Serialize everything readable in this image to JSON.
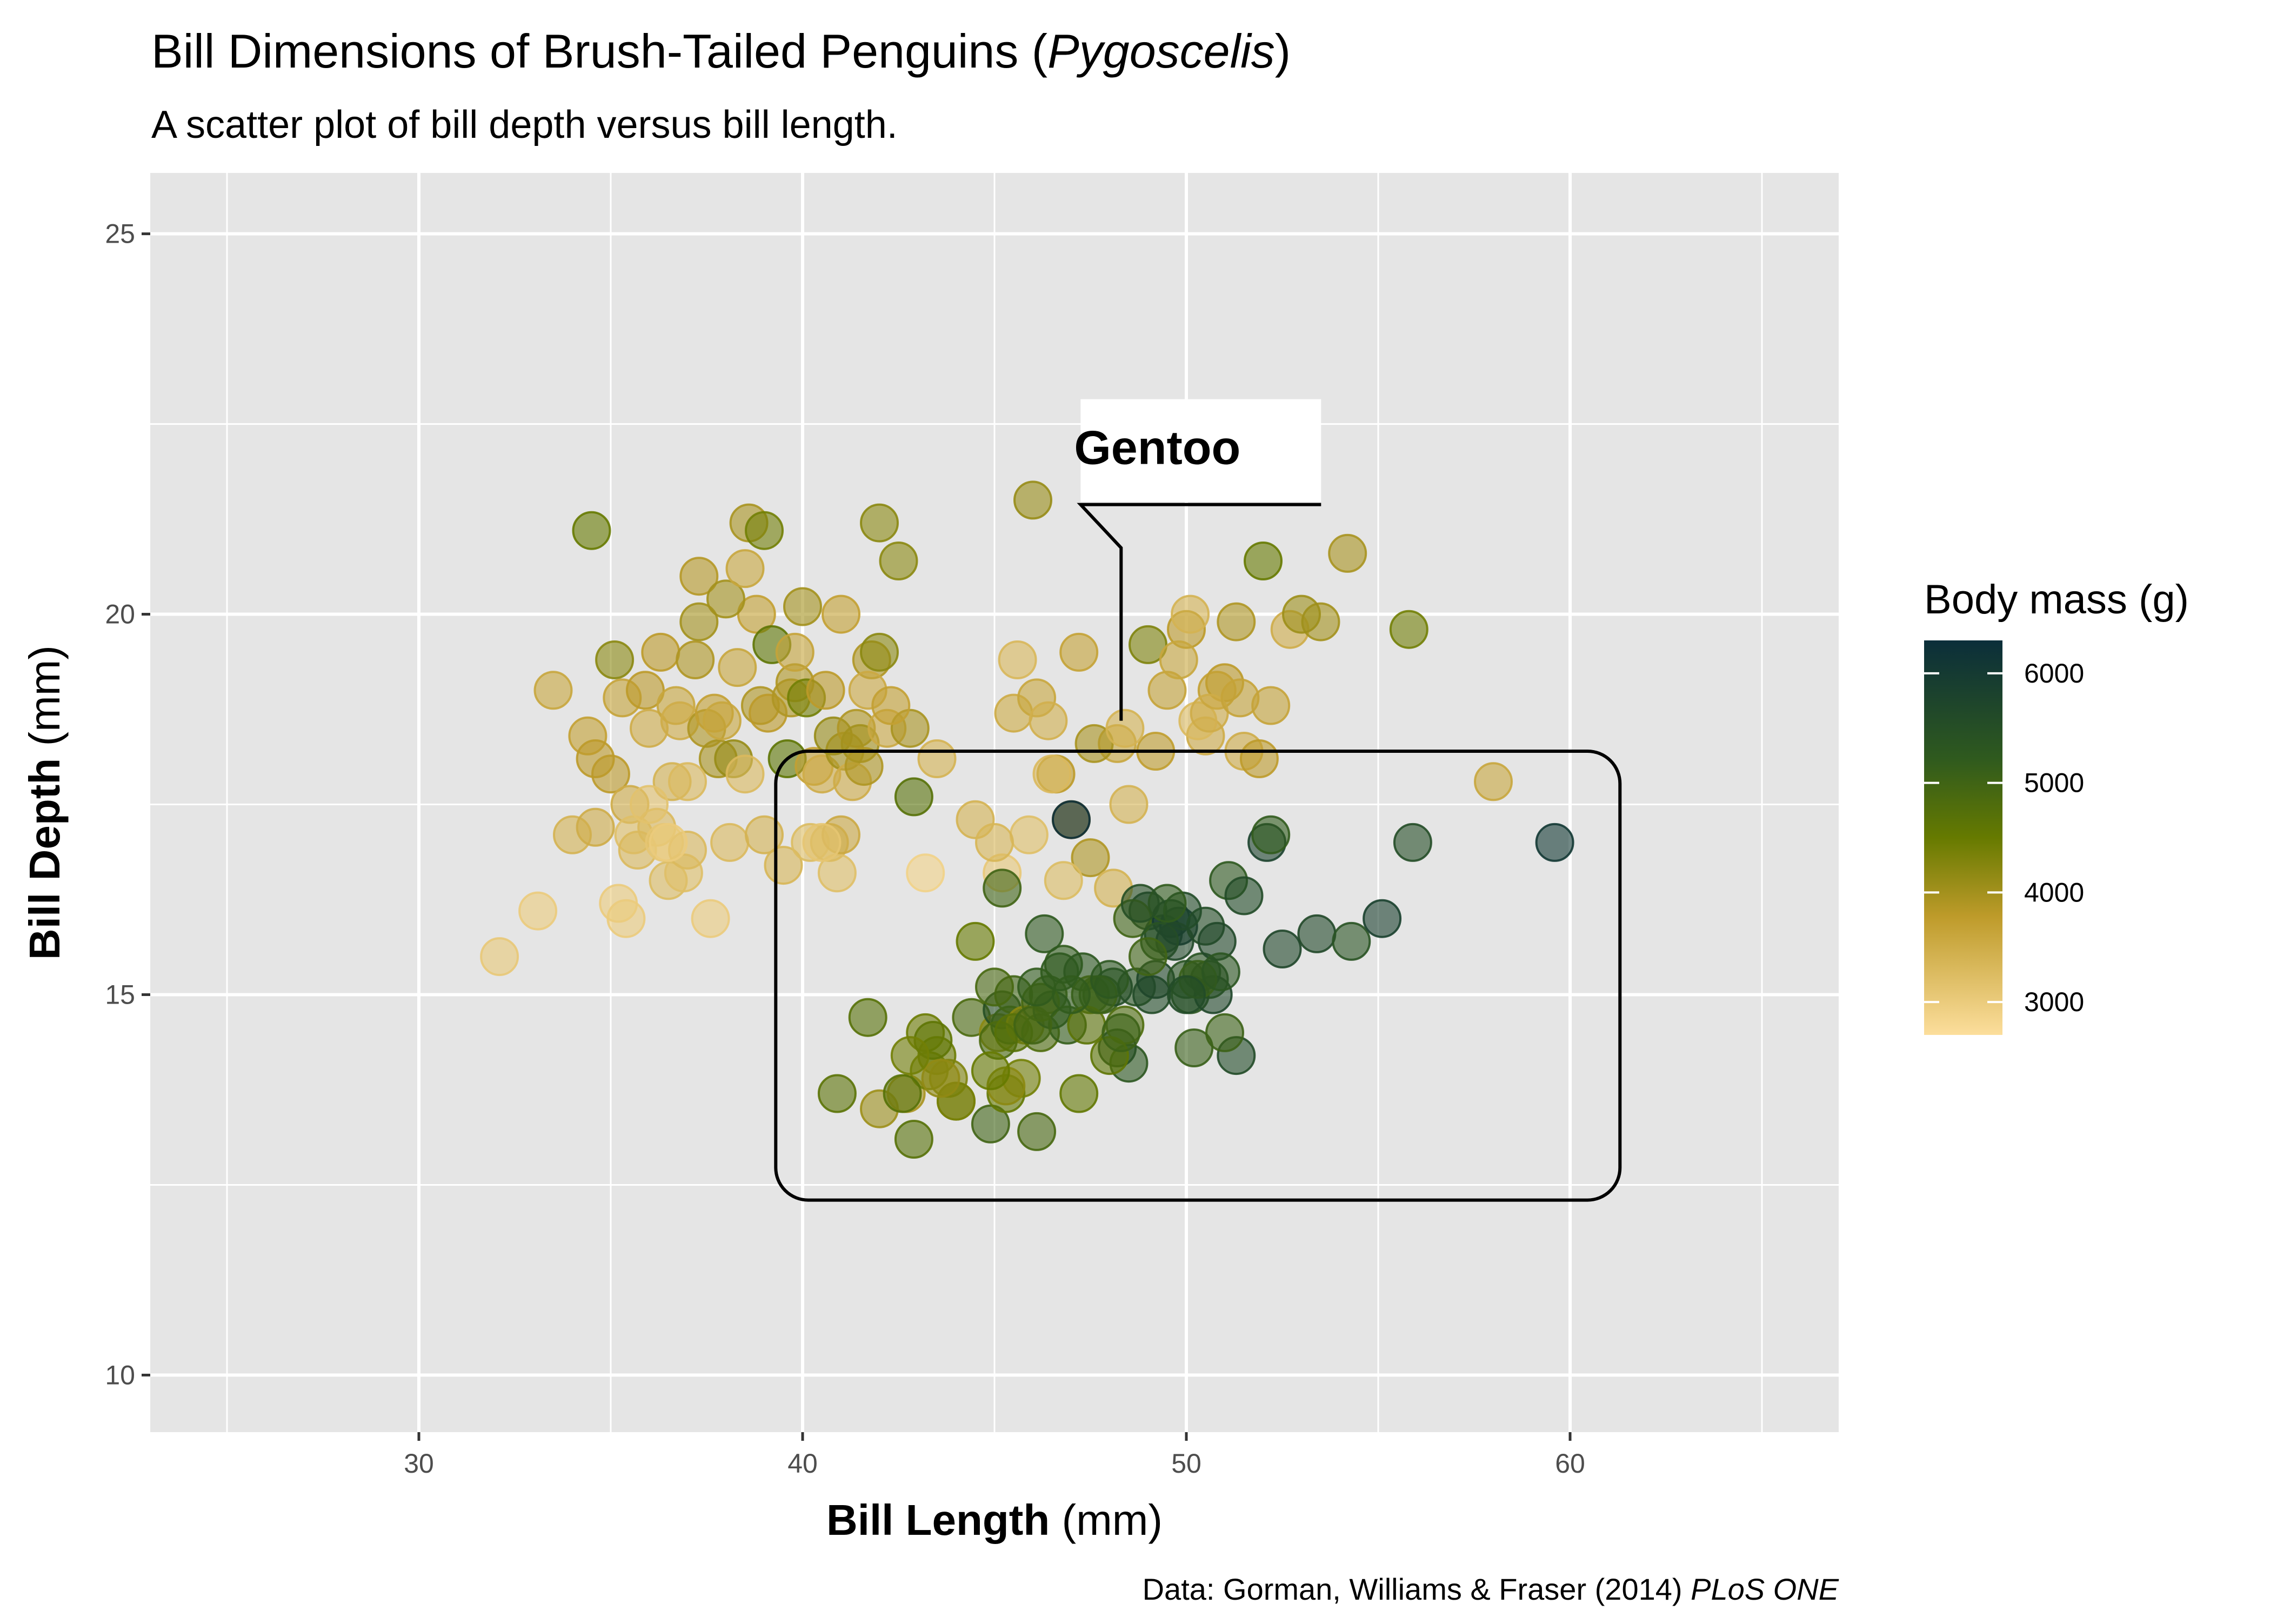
{
  "chart_data": {
    "type": "scatter",
    "title": {
      "prefix": "Bill Dimensions of Brush-Tailed Penguins (",
      "italic": "Pygoscelis",
      "suffix": ")"
    },
    "subtitle": "A scatter plot of bill depth versus bill length.",
    "xlabel": {
      "bold": "Bill Length",
      "normal": " (mm)"
    },
    "ylabel": {
      "bold": "Bill Depth",
      "normal": " (mm)"
    },
    "caption": {
      "normal": "Data: Gorman, Williams & Fraser (2014) ",
      "italic": "PLoS ONE"
    },
    "xlim": [
      23,
      67
    ],
    "ylim": [
      9.25,
      25.8
    ],
    "x_ticks": [
      30,
      40,
      50,
      60
    ],
    "y_ticks": [
      10,
      15,
      20,
      25
    ],
    "grid": true,
    "legend": {
      "title": "Body mass (g)",
      "placement": "right",
      "ticks": [
        3000,
        4000,
        5000,
        6000
      ],
      "range": [
        2700,
        6300
      ],
      "colors": {
        "low": "#FCDE9C",
        "mid1": "#BE9B2A",
        "mid2": "#667A00",
        "mid3": "#2F5A1E",
        "high": "#0B2E3A"
      }
    },
    "annotation": {
      "label": "Gentoo",
      "callout_x": 48.3,
      "callout_y": 18.6,
      "box_x": [
        39.3,
        61.3
      ],
      "box_y": [
        12.3,
        18.2
      ]
    },
    "series": [
      {
        "x": [
          32.1,
          33.1,
          33.5,
          34.0,
          34.4,
          34.5,
          34.6,
          35.0,
          35.1,
          35.2,
          35.3,
          35.5,
          35.6,
          35.7,
          35.9,
          36.0,
          36.2,
          36.3,
          36.4,
          36.5,
          36.6,
          36.7,
          36.8,
          36.9,
          37.0,
          37.2,
          37.3,
          37.5,
          37.6,
          37.7,
          37.8,
          37.9,
          38.1,
          38.2,
          38.3,
          38.5,
          38.6,
          38.8,
          38.9,
          39.0,
          39.1,
          39.2,
          39.5,
          39.6,
          39.7,
          39.8,
          40.1,
          40.2,
          40.3,
          40.5,
          40.6,
          40.7,
          40.8,
          40.9,
          41.0,
          41.1,
          41.3,
          41.4,
          41.5,
          41.6,
          41.8,
          42.0,
          42.2,
          42.5,
          42.8,
          42.9,
          43.2,
          35.4,
          36.0,
          37.0,
          38.0,
          39.0,
          40.0,
          41.0,
          42.0,
          36.5,
          38.5,
          40.5,
          34.6,
          37.3,
          39.8,
          41.7,
          42.3
        ],
        "y": [
          15.5,
          16.1,
          19.0,
          17.1,
          18.4,
          21.1,
          17.2,
          17.9,
          19.4,
          16.2,
          18.9,
          17.5,
          17.1,
          16.9,
          19.0,
          18.5,
          17.2,
          19.5,
          17.0,
          16.5,
          17.8,
          18.8,
          18.6,
          16.6,
          16.9,
          19.4,
          20.5,
          18.5,
          16.0,
          18.7,
          18.1,
          18.6,
          17.0,
          18.1,
          19.3,
          17.9,
          21.2,
          20.0,
          18.8,
          17.1,
          18.7,
          19.6,
          16.7,
          18.1,
          18.9,
          19.1,
          18.9,
          17.0,
          18.0,
          17.9,
          19.0,
          17.0,
          18.4,
          16.6,
          17.1,
          18.2,
          17.8,
          18.5,
          18.3,
          18.0,
          19.4,
          19.5,
          18.5,
          20.7,
          18.5,
          17.6,
          16.6,
          16.0,
          17.5,
          17.8,
          20.2,
          21.1,
          20.1,
          20.0,
          21.2,
          17.0,
          20.6,
          17.0,
          18.1,
          19.9,
          19.5,
          19.0,
          18.8
        ],
        "mass": [
          3050,
          3000,
          3600,
          3400,
          3700,
          4500,
          3500,
          3800,
          4200,
          3000,
          3650,
          3500,
          3200,
          3300,
          3800,
          3500,
          3300,
          3800,
          3100,
          3250,
          3400,
          3600,
          3500,
          3200,
          3300,
          3900,
          3850,
          3900,
          3000,
          3700,
          3950,
          3600,
          3300,
          4100,
          3600,
          3300,
          3950,
          3700,
          3900,
          3400,
          3800,
          4600,
          3350,
          4600,
          3900,
          3900,
          4400,
          3250,
          3700,
          3500,
          3800,
          3400,
          4100,
          3200,
          3550,
          4000,
          3500,
          3900,
          4000,
          3900,
          3900,
          4200,
          3550,
          4200,
          3950,
          4700,
          2900,
          3000,
          3150,
          3300,
          4000,
          4400,
          4000,
          3700,
          4200,
          3000,
          3600,
          3100,
          3800,
          4000,
          3650,
          3550,
          3700
        ]
      },
      {
        "x": [
          45.5,
          46.1,
          46.6,
          47.0,
          47.5,
          48.2,
          49.0,
          49.5,
          50.0,
          50.5,
          51.0,
          51.3,
          52.0,
          52.2,
          52.7,
          53.5,
          55.8,
          58.0,
          45.9,
          46.4,
          47.6,
          48.5,
          49.2,
          50.1,
          50.3,
          50.8,
          51.5,
          45.2,
          46.5,
          48.1,
          49.8,
          51.9,
          53.0,
          54.2,
          46.0,
          47.2,
          45.6,
          46.8,
          48.4,
          50.6,
          51.4,
          43.5,
          44.5,
          45.0
        ],
        "y": [
          18.7,
          18.9,
          17.9,
          17.3,
          16.8,
          18.3,
          19.6,
          19.0,
          19.8,
          18.4,
          19.1,
          19.9,
          20.7,
          18.8,
          19.8,
          19.9,
          19.8,
          17.8,
          17.1,
          18.6,
          18.3,
          17.5,
          18.2,
          20.0,
          18.6,
          19.0,
          18.2,
          16.6,
          17.9,
          16.4,
          19.4,
          18.1,
          20.0,
          20.8,
          21.5,
          19.5,
          19.4,
          16.5,
          18.5,
          18.7,
          18.9,
          18.1,
          17.3,
          17.0
        ],
        "mass": [
          3525,
          3600,
          3800,
          3700,
          3900,
          3600,
          4300,
          3650,
          3800,
          3500,
          3800,
          3900,
          4500,
          3650,
          3500,
          4000,
          4400,
          3600,
          3200,
          3450,
          3950,
          3400,
          3750,
          3400,
          3300,
          3700,
          3500,
          3050,
          3300,
          3400,
          3600,
          3775,
          4050,
          3950,
          4100,
          3675,
          3325,
          3250,
          3400,
          3500,
          3650,
          3400,
          3400,
          3350
        ]
      },
      {
        "x": [
          40.9,
          41.7,
          42.0,
          42.7,
          43.2,
          43.3,
          43.5,
          43.8,
          44.0,
          44.4,
          44.9,
          45.1,
          45.2,
          45.3,
          45.4,
          45.5,
          45.7,
          45.8,
          46.1,
          46.2,
          46.4,
          46.5,
          46.8,
          47.0,
          47.3,
          47.5,
          47.8,
          48.2,
          48.5,
          48.7,
          49.0,
          49.1,
          49.2,
          49.4,
          49.6,
          49.8,
          50.0,
          50.1,
          50.2,
          50.4,
          50.5,
          50.7,
          50.8,
          51.1,
          51.3,
          52.1,
          52.5,
          53.4,
          54.3,
          55.1,
          55.9,
          59.6,
          44.5,
          45.1,
          46.2,
          46.9,
          47.4,
          48.1,
          48.6,
          49.3,
          49.9,
          50.6,
          51.5,
          42.6,
          43.4,
          44.0,
          45.2,
          46.3,
          47.2,
          48.4,
          49.5,
          50.3,
          51.0,
          42.9,
          45.5,
          47.7,
          48.8,
          49.7,
          50.9,
          52.2,
          45.3,
          46.7,
          48.0,
          45.0,
          46.0,
          47.0,
          48.0,
          49.0,
          50.0,
          46.1,
          48.3,
          44.9,
          43.6,
          42.8
        ],
        "y": [
          13.7,
          14.7,
          13.5,
          13.7,
          14.5,
          14.0,
          14.2,
          13.9,
          13.6,
          14.7,
          13.3,
          14.5,
          14.8,
          13.7,
          14.6,
          15.0,
          13.9,
          14.6,
          13.2,
          14.5,
          15.0,
          14.8,
          15.4,
          17.3,
          15.3,
          15.0,
          15.0,
          14.3,
          14.1,
          15.1,
          16.1,
          15.0,
          15.2,
          15.8,
          16.0,
          15.9,
          15.2,
          15.0,
          14.3,
          15.3,
          15.9,
          15.0,
          15.7,
          16.5,
          14.2,
          17.0,
          15.6,
          15.8,
          15.7,
          16.0,
          17.0,
          17.0,
          15.7,
          14.4,
          14.9,
          14.6,
          14.6,
          15.1,
          16.0,
          15.7,
          16.1,
          15.2,
          16.3,
          13.7,
          14.4,
          13.6,
          16.4,
          15.8,
          13.7,
          14.6,
          16.2,
          15.2,
          14.5,
          13.1,
          14.5,
          15.0,
          16.2,
          15.7,
          15.3,
          17.1,
          13.8,
          15.3,
          14.2,
          15.1,
          14.6,
          15.0,
          15.2,
          15.5,
          15.0,
          15.1,
          14.5,
          14.0,
          13.9,
          14.2
        ],
        "mass": [
          4650,
          4700,
          4050,
          3950,
          4450,
          4400,
          4450,
          4300,
          4350,
          4850,
          5000,
          4200,
          5500,
          4550,
          5100,
          5000,
          4400,
          4200,
          4900,
          4800,
          5000,
          5400,
          5200,
          6300,
          5300,
          5000,
          5100,
          5700,
          5300,
          5400,
          5800,
          5600,
          5700,
          5800,
          6000,
          6200,
          5400,
          5300,
          5100,
          5400,
          5550,
          5700,
          5650,
          5250,
          5600,
          5800,
          5700,
          5650,
          5400,
          5850,
          5550,
          6050,
          4500,
          4850,
          4900,
          5150,
          4650,
          5550,
          5000,
          5400,
          5600,
          5500,
          5600,
          4700,
          4600,
          4350,
          5000,
          5250,
          4550,
          4800,
          5200,
          5100,
          5050,
          4700,
          4700,
          5050,
          5500,
          5650,
          5350,
          5200,
          4200,
          5250,
          4600,
          4900,
          5000,
          5200,
          5300,
          5000,
          5600,
          5200,
          5050,
          4500,
          4150,
          4400
        ]
      }
    ]
  }
}
